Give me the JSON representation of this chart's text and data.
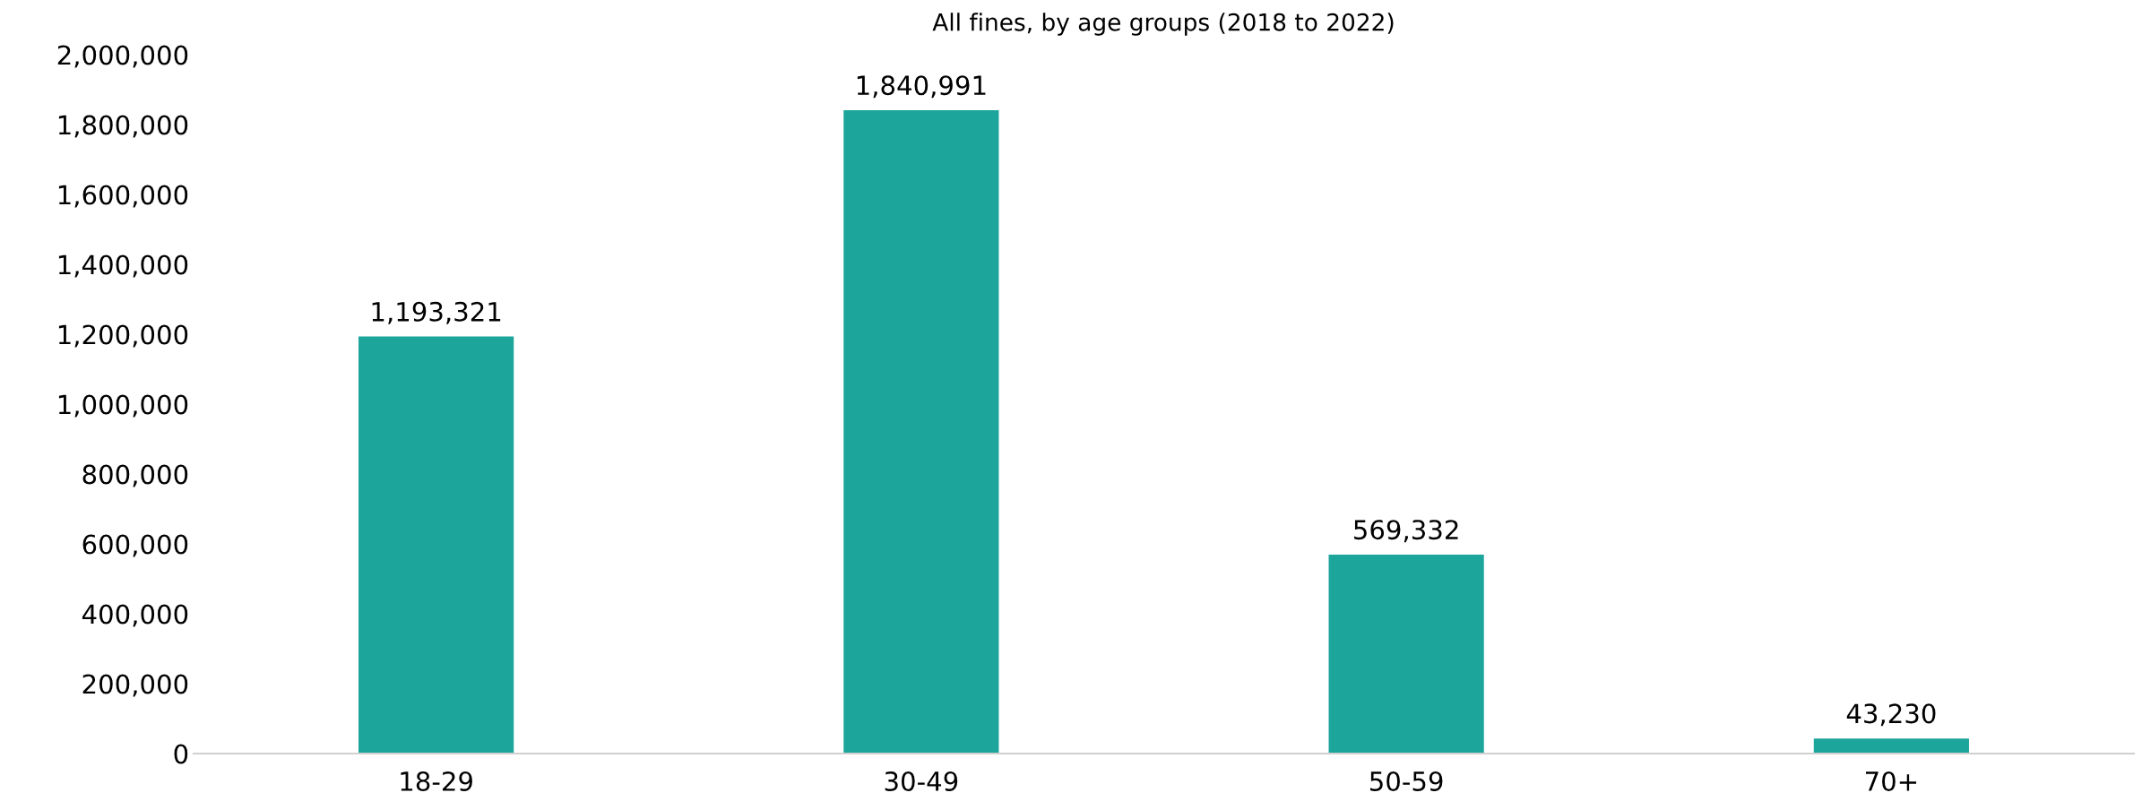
{
  "chart_data": {
    "type": "bar",
    "title": "All fines, by age groups (2018 to 2022)",
    "categories": [
      "18-29",
      "30-49",
      "50-59",
      "70+"
    ],
    "values": [
      1193321,
      1840991,
      569332,
      43230
    ],
    "color": "#1ca59b",
    "data_labels": true,
    "value_labels": [
      "1,193,321",
      "1,840,991",
      "569,332",
      "43,230"
    ],
    "ylim": [
      0,
      2000000
    ],
    "yticks": [
      {
        "value": 0,
        "label": "0"
      },
      {
        "value": 200000,
        "label": "200,000"
      },
      {
        "value": 400000,
        "label": "400,000"
      },
      {
        "value": 600000,
        "label": "600,000"
      },
      {
        "value": 800000,
        "label": "800,000"
      },
      {
        "value": 1000000,
        "label": "1,000,000"
      },
      {
        "value": 1200000,
        "label": "1,200,000"
      },
      {
        "value": 1400000,
        "label": "1,400,000"
      },
      {
        "value": 1600000,
        "label": "1,600,000"
      },
      {
        "value": 1800000,
        "label": "1,800,000"
      },
      {
        "value": 2000000,
        "label": "2,000,000"
      }
    ],
    "grid": false,
    "legend": false
  }
}
